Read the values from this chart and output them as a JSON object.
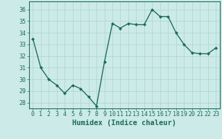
{
  "x": [
    0,
    1,
    2,
    3,
    4,
    5,
    6,
    7,
    8,
    9,
    10,
    11,
    12,
    13,
    14,
    15,
    16,
    17,
    18,
    19,
    20,
    21,
    22,
    23
  ],
  "y": [
    33.5,
    31.0,
    30.0,
    29.5,
    28.8,
    29.5,
    29.2,
    28.5,
    27.7,
    31.5,
    34.8,
    34.4,
    34.8,
    34.7,
    34.7,
    36.0,
    35.4,
    35.4,
    34.0,
    33.0,
    32.3,
    32.2,
    32.2,
    32.7
  ],
  "line_color": "#1a6b5a",
  "marker": "D",
  "marker_size": 2.0,
  "bg_color": "#cceae8",
  "grid_color": "#aad4d0",
  "tick_color": "#1a6b5a",
  "xlabel": "Humidex (Indice chaleur)",
  "ylim": [
    27.5,
    36.7
  ],
  "yticks": [
    28,
    29,
    30,
    31,
    32,
    33,
    34,
    35,
    36
  ],
  "xticks": [
    0,
    1,
    2,
    3,
    4,
    5,
    6,
    7,
    8,
    9,
    10,
    11,
    12,
    13,
    14,
    15,
    16,
    17,
    18,
    19,
    20,
    21,
    22,
    23
  ],
  "xlabel_fontsize": 7.5,
  "tick_fontsize": 6.0,
  "line_width": 1.0
}
